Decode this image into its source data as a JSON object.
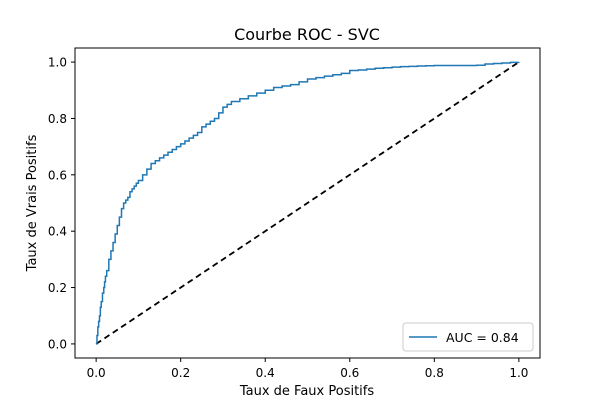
{
  "chart_data": {
    "type": "line",
    "title": "Courbe ROC - SVC",
    "xlabel": "Taux de Faux Positifs",
    "ylabel": "Taux de Vrais Positifs",
    "xlim": [
      -0.05,
      1.05
    ],
    "ylim": [
      -0.05,
      1.05
    ],
    "xticks": [
      "0.0",
      "0.2",
      "0.4",
      "0.6",
      "0.8",
      "1.0"
    ],
    "yticks": [
      "0.0",
      "0.2",
      "0.4",
      "0.6",
      "0.8",
      "1.0"
    ],
    "grid": false,
    "legend": {
      "placement": "lower-right",
      "entries": [
        "AUC = 0.84"
      ]
    },
    "series": [
      {
        "name": "AUC = 0.84",
        "color": "#1f77b4",
        "style": "solid",
        "x": [
          0.0,
          0.002,
          0.004,
          0.006,
          0.008,
          0.01,
          0.012,
          0.015,
          0.018,
          0.02,
          0.022,
          0.025,
          0.03,
          0.035,
          0.04,
          0.045,
          0.05,
          0.055,
          0.06,
          0.065,
          0.07,
          0.075,
          0.08,
          0.085,
          0.09,
          0.095,
          0.1,
          0.11,
          0.12,
          0.13,
          0.14,
          0.15,
          0.16,
          0.17,
          0.18,
          0.19,
          0.2,
          0.21,
          0.22,
          0.23,
          0.24,
          0.25,
          0.26,
          0.27,
          0.28,
          0.29,
          0.3,
          0.31,
          0.32,
          0.34,
          0.36,
          0.38,
          0.4,
          0.42,
          0.44,
          0.46,
          0.48,
          0.5,
          0.52,
          0.54,
          0.56,
          0.58,
          0.6,
          0.62,
          0.64,
          0.66,
          0.68,
          0.7,
          0.72,
          0.74,
          0.76,
          0.78,
          0.8,
          0.82,
          0.84,
          0.86,
          0.88,
          0.9,
          0.92,
          0.94,
          0.96,
          0.98,
          1.0
        ],
        "y": [
          0.0,
          0.03,
          0.06,
          0.08,
          0.1,
          0.13,
          0.15,
          0.18,
          0.2,
          0.22,
          0.24,
          0.26,
          0.3,
          0.33,
          0.36,
          0.39,
          0.42,
          0.45,
          0.48,
          0.5,
          0.51,
          0.52,
          0.54,
          0.55,
          0.56,
          0.57,
          0.58,
          0.6,
          0.62,
          0.64,
          0.65,
          0.66,
          0.67,
          0.68,
          0.69,
          0.7,
          0.71,
          0.72,
          0.73,
          0.74,
          0.75,
          0.77,
          0.78,
          0.79,
          0.8,
          0.82,
          0.84,
          0.85,
          0.86,
          0.87,
          0.88,
          0.89,
          0.9,
          0.91,
          0.915,
          0.92,
          0.93,
          0.94,
          0.945,
          0.95,
          0.955,
          0.96,
          0.97,
          0.972,
          0.975,
          0.978,
          0.98,
          0.982,
          0.984,
          0.985,
          0.986,
          0.987,
          0.988,
          0.988,
          0.988,
          0.988,
          0.988,
          0.989,
          0.993,
          0.995,
          0.997,
          0.999,
          1.0
        ]
      },
      {
        "name": "",
        "color": "#000000",
        "style": "dashed",
        "x": [
          0.0,
          1.0
        ],
        "y": [
          0.0,
          1.0
        ]
      }
    ]
  }
}
